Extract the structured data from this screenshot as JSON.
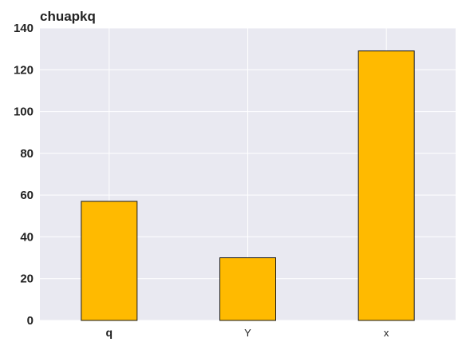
{
  "chart_data": {
    "type": "bar",
    "title": "chuapkq",
    "xlabel": "",
    "ylabel": "",
    "categories": [
      "q",
      "Y",
      "x"
    ],
    "values": [
      57,
      30,
      129
    ],
    "ylim": [
      0,
      140
    ],
    "yticks": [
      "0",
      "20",
      "40",
      "60",
      "80",
      "100",
      "120",
      "140"
    ],
    "grid": true,
    "legend": "none",
    "colors": {
      "bar_fill": "#FFBA00",
      "bar_edge": "#1a1a1a",
      "plot_background": "#E9E9F1",
      "grid": "#ffffff"
    }
  }
}
